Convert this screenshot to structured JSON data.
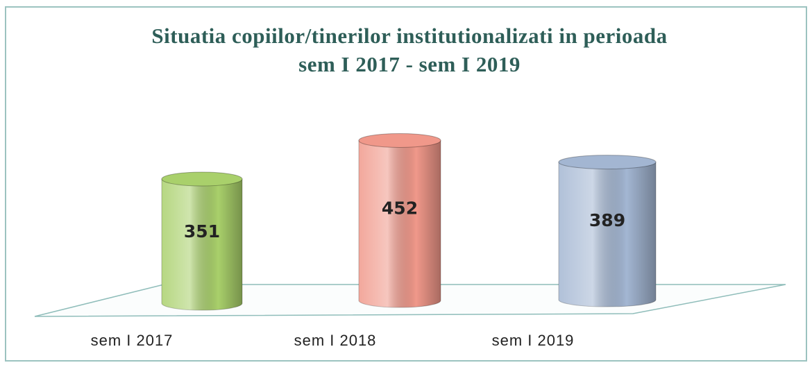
{
  "chart_data": {
    "type": "bar",
    "title": [
      "Situatia copiilor/tinerilor institutionalizati in perioada",
      "sem I 2017 - sem I 2019"
    ],
    "categories": [
      "sem I 2017",
      "sem I 2018",
      "sem I 2019"
    ],
    "values": [
      351,
      452,
      389
    ],
    "colors": [
      "#a9d06b",
      "#f0988a",
      "#a3b6d2"
    ]
  }
}
